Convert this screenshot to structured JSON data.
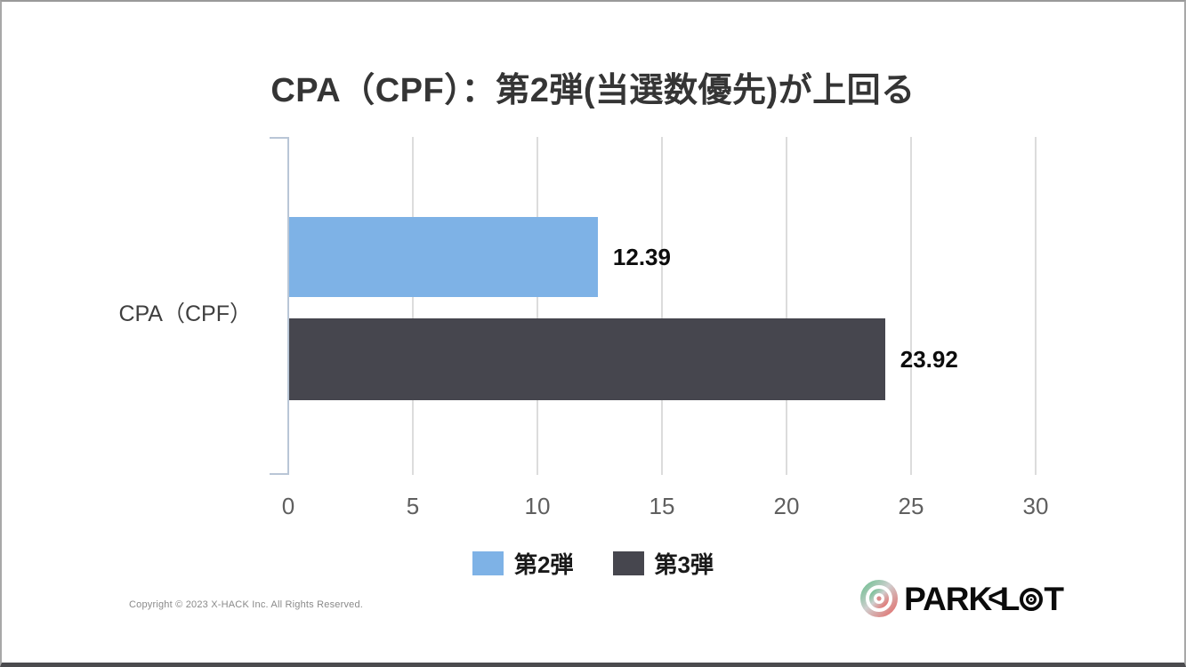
{
  "slide": {
    "title": "CPA（CPF）：第2弾(当選数優先)が上回る",
    "footer": {
      "copyright": "Copyright © 2023 X-HACK Inc. All Rights Reserved.",
      "logo": {
        "brand": "PARKLOT",
        "word_part1": "PARK",
        "word_part2": "L",
        "word_part3": "T"
      }
    }
  },
  "chart_data": {
    "type": "bar",
    "orientation": "horizontal",
    "title": "CPA（CPF）：第2弾(当選数優先)が上回る",
    "categories": [
      "CPA（CPF）"
    ],
    "series": [
      {
        "name": "第2弾",
        "values": [
          12.39
        ],
        "color": "#7EB2E6"
      },
      {
        "name": "第3弾",
        "values": [
          23.92
        ],
        "color": "#46464E"
      }
    ],
    "xlim": [
      0,
      30
    ],
    "x_ticks": [
      0,
      5,
      10,
      15,
      20,
      25,
      30
    ],
    "grid": true,
    "data_labels": true,
    "legend_position": "bottom",
    "axis_color": "#B9C6D6",
    "gridline_color": "#DCDCDC"
  }
}
